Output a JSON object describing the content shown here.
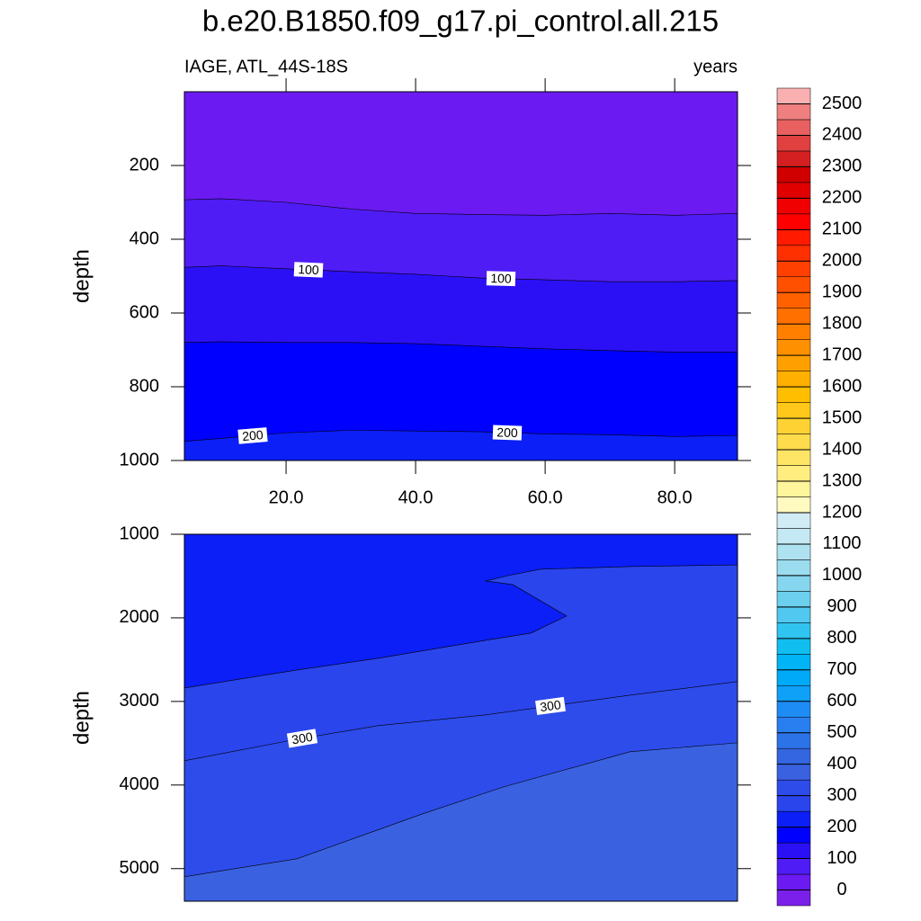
{
  "chart_data": [
    {
      "type": "contour",
      "title": "b.e20.B1850.f09_g17.pi_control.all.215",
      "subtitle": "IAGE, ATL_44S-18S",
      "units": "years",
      "ylabel": "depth",
      "xlim": [
        4.3,
        89.7
      ],
      "ylim": [
        0,
        1000
      ],
      "y_reversed": true,
      "xticks": [
        {
          "value": 20,
          "label": "20.0"
        },
        {
          "value": 40,
          "label": "40.0"
        },
        {
          "value": 60,
          "label": "60.0"
        },
        {
          "value": 80,
          "label": "80.0"
        }
      ],
      "yticks": [
        200,
        400,
        600,
        800,
        1000
      ],
      "series": [
        {
          "level": 50,
          "x": [
            4.3,
            10,
            20,
            30,
            40,
            50,
            60,
            70,
            80,
            89.7
          ],
          "values": [
            293,
            290,
            300,
            318,
            330,
            333,
            335,
            330,
            335,
            330
          ]
        },
        {
          "level": 100,
          "x": [
            4.3,
            10,
            20,
            30,
            40,
            50,
            60,
            70,
            80,
            89.7
          ],
          "values": [
            476,
            472,
            480,
            488,
            495,
            505,
            510,
            515,
            515,
            512
          ]
        },
        {
          "level": 150,
          "x": [
            4.3,
            10,
            20,
            30,
            40,
            50,
            60,
            70,
            80,
            89.7
          ],
          "values": [
            680,
            678,
            680,
            680,
            683,
            690,
            697,
            702,
            706,
            706
          ]
        },
        {
          "level": 200,
          "x": [
            4.3,
            10,
            20,
            30,
            40,
            50,
            60,
            70,
            80,
            89.7
          ],
          "values": [
            948,
            940,
            925,
            918,
            920,
            922,
            928,
            930,
            935,
            932
          ]
        }
      ],
      "colorbar": {
        "ticks": [
          0,
          100,
          200,
          300,
          400,
          500,
          600,
          700,
          800,
          900,
          1000,
          1100,
          1200,
          1300,
          1400,
          1500,
          1600,
          1700,
          1800,
          1900,
          2000,
          2100,
          2200,
          2300,
          2400,
          2500
        ],
        "colors": [
          "#7b20ea",
          "#6b1af2",
          "#4f1cf5",
          "#2b10f6",
          "#0000ff",
          "#0b1ff6",
          "#2a45ec",
          "#2e4cea",
          "#3a62e0",
          "#3366e0",
          "#2d73e8",
          "#2a7ff0",
          "#1e8cf5",
          "#0fa0f8",
          "#00aaf8",
          "#00b4f5",
          "#10bef0",
          "#30c4f0",
          "#50c8f0",
          "#6ccfee",
          "#86d6f0",
          "#9cdcef",
          "#afe2f1",
          "#c4e8f4",
          "#d2ecf5",
          "#fffac0",
          "#fff59a",
          "#ffed80",
          "#ffe566",
          "#ffdc4c",
          "#ffd233",
          "#ffc81a",
          "#ffbe00",
          "#ffb000",
          "#ffa000",
          "#ff9000",
          "#ff8000",
          "#ff7000",
          "#ff6000",
          "#ff5000",
          "#ff4000",
          "#ff3000",
          "#ff1a00",
          "#ff0000",
          "#f00000",
          "#e00000",
          "#d00000",
          "#d42020",
          "#e04040",
          "#e86060",
          "#f08080",
          "#f9b0b0"
        ]
      }
    },
    {
      "type": "contour",
      "ylabel": "depth",
      "xlim": [
        4.3,
        89.7
      ],
      "ylim": [
        1000,
        5390
      ],
      "y_reversed": true,
      "yticks": [
        1000,
        2000,
        3000,
        4000,
        5000
      ],
      "series": [
        {
          "level": 250,
          "x": [
            4.3,
            21.7,
            34.2,
            50.8,
            57.8,
            63.3,
            55,
            50.8,
            54.3,
            59.2,
            73.1,
            89.7
          ],
          "values": [
            2839,
            2624,
            2484,
            2269,
            2183,
            1978,
            1602,
            1559,
            1495,
            1419,
            1387,
            1366
          ]
        },
        {
          "level": 300,
          "x": [
            4.3,
            21.7,
            34.2,
            50.8,
            61.9,
            73.1,
            89.7
          ],
          "values": [
            3710,
            3452,
            3290,
            3161,
            3043,
            2925,
            2763
          ]
        },
        {
          "level": 350,
          "x": [
            4.3,
            21.7,
            31.4,
            41.1,
            53.6,
            73.1,
            89.7
          ],
          "values": [
            5097,
            4882,
            4613,
            4344,
            4022,
            3602,
            3495
          ]
        }
      ]
    }
  ]
}
